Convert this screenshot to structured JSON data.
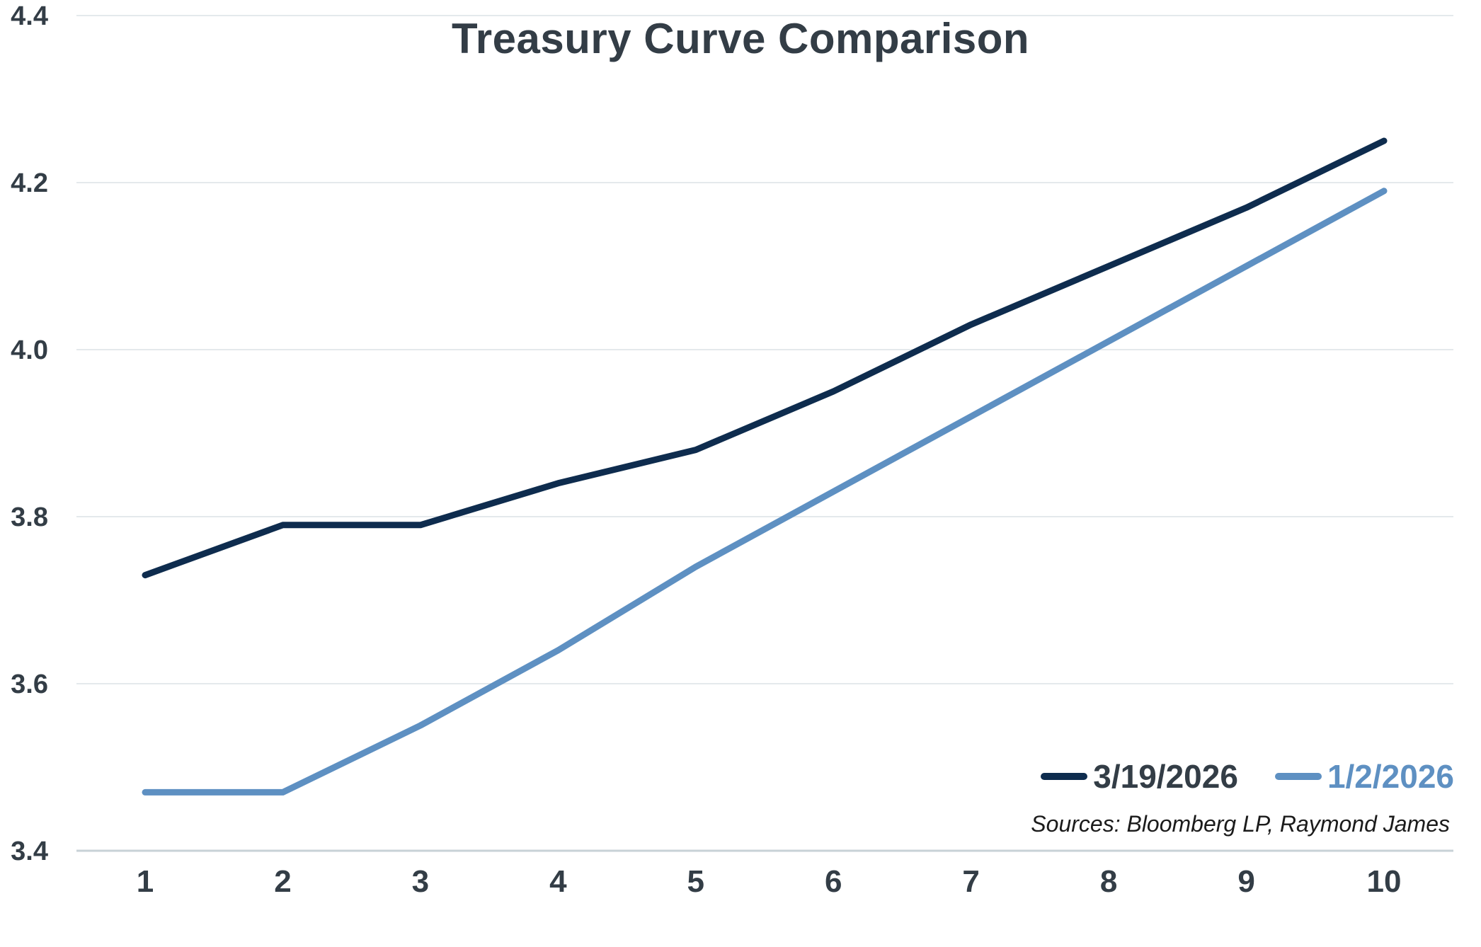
{
  "chart_data": {
    "type": "line",
    "title": "Treasury Curve Comparison",
    "x": [
      1,
      2,
      3,
      4,
      5,
      6,
      7,
      8,
      9,
      10
    ],
    "x_tick_labels": [
      "1",
      "2",
      "3",
      "4",
      "5",
      "6",
      "7",
      "8",
      "9",
      "10"
    ],
    "y_ticks": [
      3.4,
      3.6,
      3.8,
      4.0,
      4.2,
      4.4
    ],
    "y_tick_labels": [
      "3.4",
      "3.6",
      "3.8",
      "4.0",
      "4.2",
      "4.4"
    ],
    "xlim": [
      1,
      10
    ],
    "ylim": [
      3.4,
      4.4
    ],
    "grid": "horizontal",
    "legend_position": "inside-bottom-right",
    "series": [
      {
        "name": "3/19/2026",
        "color": "#0e2c4e",
        "label_color": "#333d46",
        "values": [
          3.73,
          3.79,
          3.79,
          3.84,
          3.88,
          3.95,
          4.03,
          4.1,
          4.17,
          4.25
        ]
      },
      {
        "name": "1/2/2026",
        "color": "#5e90c2",
        "label_color": "#5e90c2",
        "values": [
          3.47,
          3.47,
          3.55,
          3.64,
          3.74,
          3.83,
          3.92,
          4.01,
          4.1,
          4.19
        ]
      }
    ],
    "sources_note": "Sources: Bloomberg LP, Raymond James"
  },
  "colors": {
    "text": "#333d46",
    "gridline": "#e4e9ec",
    "axis_line": "#c8d2d7",
    "background": "#ffffff",
    "border_light": "#dfe5e9",
    "border_bottom_dark": "#414e4d"
  }
}
